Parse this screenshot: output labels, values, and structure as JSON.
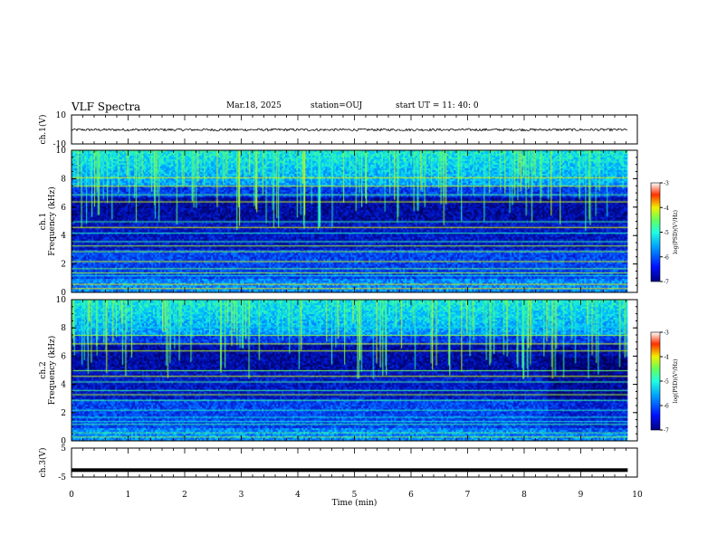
{
  "header": {
    "title": "VLF Spectra",
    "date": "Mar.18, 2025",
    "station": "station=OUJ",
    "start": "start  UT  =   11: 40: 0"
  },
  "chart_data": [
    {
      "type": "line",
      "panel": "ch1-waveform",
      "ylabel": "ch.1(V)",
      "ylim": [
        -10,
        10
      ],
      "y_tick_labels": [
        "10",
        "-10"
      ],
      "xlim": [
        0,
        10
      ],
      "series": [
        {
          "description_value_level": -0.2
        }
      ]
    },
    {
      "type": "heatmap",
      "panel": "ch1-spectrogram",
      "ylabel_top": "ch.1",
      "ylabel": "Frequency  (kHz)",
      "ylim": [
        0,
        10
      ],
      "y_tick_labels": [
        "0",
        "2",
        "4",
        "6",
        "8",
        "10"
      ],
      "xlim": [
        0,
        10
      ],
      "data_end_min": 9.83,
      "colorbar": {
        "label": "log(PSD)(V²/Hz)",
        "range": [
          -7,
          -3
        ],
        "tick_labels": [
          "-3",
          "-4",
          "-5",
          "-6",
          "-7"
        ]
      }
    },
    {
      "type": "heatmap",
      "panel": "ch2-spectrogram",
      "ylabel_top": "ch.2",
      "ylabel": "Frequency  (kHz)",
      "ylim": [
        0,
        10
      ],
      "y_tick_labels": [
        "0",
        "2",
        "4",
        "6",
        "8",
        "10"
      ],
      "xlim": [
        0,
        10
      ],
      "data_end_min": 9.83,
      "colorbar": {
        "label": "log(PSD)(V²/Hz)",
        "range": [
          -7,
          -3
        ],
        "tick_labels": [
          "-3",
          "-4",
          "-5",
          "-6",
          "-7"
        ]
      }
    },
    {
      "type": "line",
      "panel": "ch3-waveform",
      "ylabel": "ch.3(V)",
      "ylim": [
        -5,
        5
      ],
      "y_tick_labels": [
        "5",
        "-5"
      ],
      "xlim": [
        0,
        10
      ],
      "xlabel": "Time  (min)",
      "x_tick_labels": [
        "0",
        "1",
        "2",
        "3",
        "4",
        "5",
        "6",
        "7",
        "8",
        "9",
        "10"
      ],
      "series": [
        {
          "description_value_level": -2.6
        }
      ]
    }
  ]
}
